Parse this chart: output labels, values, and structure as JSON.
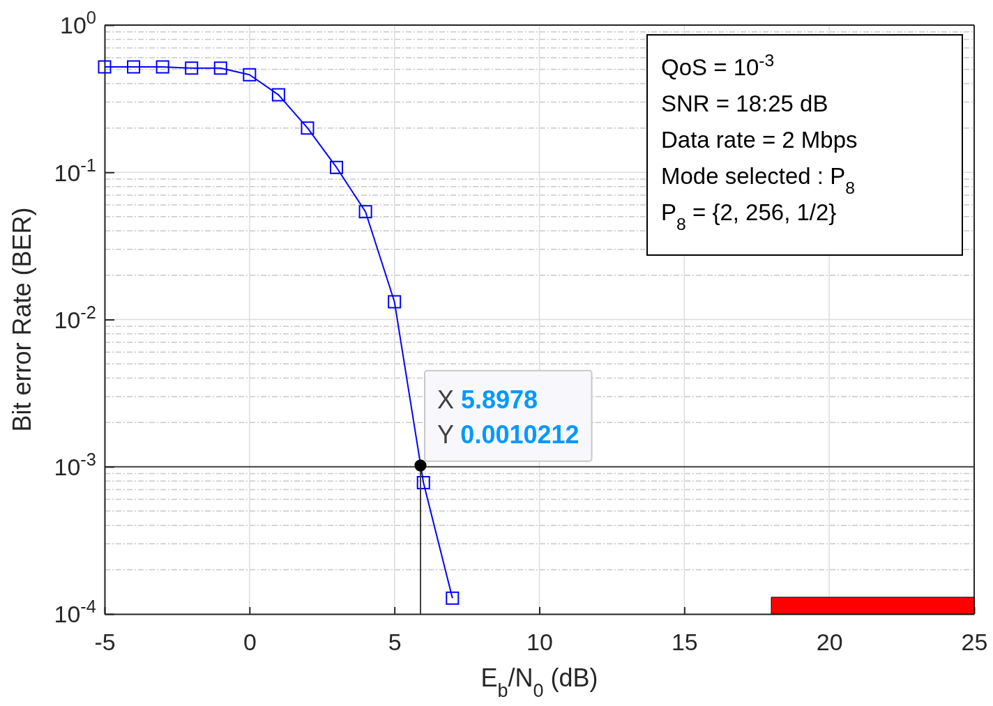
{
  "chart_data": {
    "type": "line",
    "xlabel": "E$_{b}$/N$_{0}$ (dB)",
    "ylabel": "Bit error Rate (BER)",
    "log": "y",
    "grid": true,
    "xlim": [
      -5,
      25
    ],
    "xticks": [
      -5,
      0,
      5,
      10,
      15,
      20,
      25
    ],
    "ylim": [
      0.0001,
      1
    ],
    "yticks": [
      {
        "value": 0.0001,
        "label": "10$^{-4}$"
      },
      {
        "value": 0.001,
        "label": "10$^{-3}$"
      },
      {
        "value": 0.01,
        "label": "10$^{-2}$"
      },
      {
        "value": 0.1,
        "label": "10$^{-1}$"
      },
      {
        "value": 1,
        "label": "10$^{0}$"
      }
    ],
    "series": [
      {
        "color": "#0000ff",
        "marker": "square",
        "line_style": "solid",
        "x": [
          -5,
          -4,
          -3,
          -2,
          -1,
          0,
          1,
          2,
          3,
          4,
          5,
          6,
          7
        ],
        "values": [
          0.52,
          0.52,
          0.52,
          0.51,
          0.51,
          0.46,
          0.336,
          0.2,
          0.108,
          0.054,
          0.0132,
          0.00078,
          0.000128
        ]
      },
      {
        "type": "line",
        "color": "#404040",
        "marker": "none",
        "line_style": "solid",
        "x": [
          5.8978,
          5.8978
        ],
        "values": [
          0.0001,
          0.0010212
        ]
      },
      {
        "type": "scatter",
        "color": "#000000",
        "marker": "circle",
        "x": [
          5.8978
        ],
        "values": [
          0.0010212
        ]
      },
      {
        "type": "area",
        "color": "#ff0000",
        "marker": "none",
        "x": [
          18,
          25
        ],
        "values": [
          0.00013,
          0.00013
        ]
      }
    ],
    "ref_lines": [
      {
        "axis": "y",
        "value": 0.001,
        "color": "#404040"
      }
    ],
    "annotations": [
      "QoS = 10$^{-3}$",
      "SNR = 18:25 dB",
      "Data rate = 2 Mbps",
      "Mode selected : P$_{8}$",
      "P$_{8}$ = {2, 256, 1/2}",
      {
        "text": "X 5.8978",
        "x": 5.8978,
        "y": 0.0010212
      },
      {
        "text": "Y 0.0010212",
        "x": 5.8978,
        "y": 0.0010212
      }
    ]
  }
}
